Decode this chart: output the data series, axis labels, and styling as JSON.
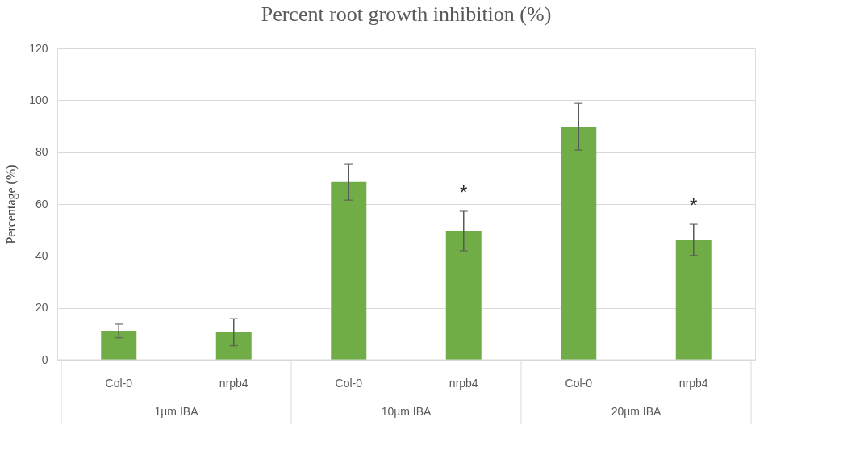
{
  "chart_data": {
    "type": "bar",
    "title": "Percent root growth inhibition (%)",
    "ylabel": "Percentage (%)",
    "categories": [
      "Col-0",
      "nrpb4",
      "Col-0",
      "nrpb4",
      "Col-0",
      "nrpb4"
    ],
    "values": [
      11.1,
      10.6,
      68.5,
      49.6,
      89.8,
      46.2
    ],
    "errors": [
      2.6,
      5.2,
      7.0,
      7.6,
      9.0,
      6.0
    ],
    "value_labels": [
      null,
      null,
      null,
      "*",
      null,
      "*"
    ],
    "color": "#70ad47",
    "ylim": [
      0,
      120
    ],
    "yticks": [
      0,
      20,
      40,
      60,
      80,
      100,
      120
    ],
    "grid": "y",
    "annotations": [
      "1µm IBA",
      "10µm IBA",
      "20µm IBA"
    ]
  }
}
